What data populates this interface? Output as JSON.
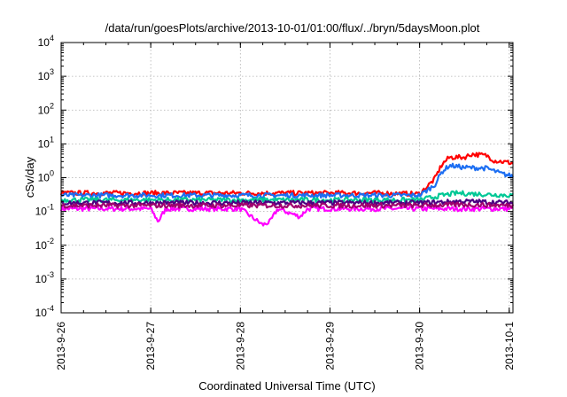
{
  "chart_data": {
    "type": "line",
    "title": "/data/run/goesPlots/archive/2013-10-01/01:00/flux/../bryn/5daysMoon.plot",
    "xlabel": "Coordinated Universal Time (UTC)",
    "ylabel": "cSv/day",
    "yscale": "log",
    "ylim": [
      0.0001,
      10000
    ],
    "xlim": [
      "2013-09-26",
      "2013-10-01 01:00"
    ],
    "grid": true,
    "x_ticks": [
      "2013-9-26",
      "2013-9-27",
      "2013-9-28",
      "2013-9-29",
      "2013-9-30",
      "2013-10-1"
    ],
    "y_ticks": [
      {
        "base": "10",
        "exp": "-4",
        "value": 0.0001
      },
      {
        "base": "10",
        "exp": "-3",
        "value": 0.001
      },
      {
        "base": "10",
        "exp": "-2",
        "value": 0.01
      },
      {
        "base": "10",
        "exp": "-1",
        "value": 0.1
      },
      {
        "base": "10",
        "exp": "0",
        "value": 1
      },
      {
        "base": "10",
        "exp": "1",
        "value": 10
      },
      {
        "base": "10",
        "exp": "2",
        "value": 100
      },
      {
        "base": "10",
        "exp": "3",
        "value": 1000
      },
      {
        "base": "10",
        "exp": "4",
        "value": 10000
      }
    ],
    "series": [
      {
        "color": "#ff00ff",
        "points": [
          [
            "2013-09-26 00:00",
            0.12
          ],
          [
            "2013-09-26 12:00",
            0.12
          ],
          [
            "2013-09-27 00:00",
            0.12
          ],
          [
            "2013-09-27 02:00",
            0.05
          ],
          [
            "2013-09-27 04:00",
            0.12
          ],
          [
            "2013-09-28 00:00",
            0.12
          ],
          [
            "2013-09-28 06:00",
            0.04
          ],
          [
            "2013-09-28 08:00",
            0.05
          ],
          [
            "2013-09-28 10:00",
            0.12
          ],
          [
            "2013-09-28 16:00",
            0.07
          ],
          [
            "2013-09-28 18:00",
            0.12
          ],
          [
            "2013-09-29 00:00",
            0.12
          ],
          [
            "2013-09-30 00:00",
            0.12
          ],
          [
            "2013-09-30 12:00",
            0.12
          ],
          [
            "2013-10-01 01:00",
            0.12
          ]
        ]
      },
      {
        "color": "#ff0000",
        "points": [
          [
            "2013-09-26 00:00",
            0.35
          ],
          [
            "2013-09-26 12:00",
            0.35
          ],
          [
            "2013-09-27 00:00",
            0.35
          ],
          [
            "2013-09-27 12:00",
            0.35
          ],
          [
            "2013-09-28 00:00",
            0.35
          ],
          [
            "2013-09-28 12:00",
            0.35
          ],
          [
            "2013-09-29 00:00",
            0.35
          ],
          [
            "2013-09-29 12:00",
            0.35
          ],
          [
            "2013-09-30 00:00",
            0.33
          ],
          [
            "2013-09-30 04:00",
            0.9
          ],
          [
            "2013-09-30 06:00",
            2.5
          ],
          [
            "2013-09-30 08:00",
            4.0
          ],
          [
            "2013-09-30 12:00",
            4.0
          ],
          [
            "2013-09-30 14:00",
            5.0
          ],
          [
            "2013-09-30 18:00",
            4.5
          ],
          [
            "2013-09-30 20:00",
            3.2
          ],
          [
            "2013-10-01 01:00",
            2.7
          ]
        ]
      },
      {
        "color": "#1c6ef2",
        "points": [
          [
            "2013-09-26 00:00",
            0.3
          ],
          [
            "2013-09-26 12:00",
            0.3
          ],
          [
            "2013-09-27 00:00",
            0.3
          ],
          [
            "2013-09-27 12:00",
            0.3
          ],
          [
            "2013-09-28 00:00",
            0.3
          ],
          [
            "2013-09-28 12:00",
            0.3
          ],
          [
            "2013-09-29 00:00",
            0.3
          ],
          [
            "2013-09-29 12:00",
            0.3
          ],
          [
            "2013-09-30 00:00",
            0.3
          ],
          [
            "2013-09-30 04:00",
            0.6
          ],
          [
            "2013-09-30 06:00",
            1.5
          ],
          [
            "2013-09-30 08:00",
            2.3
          ],
          [
            "2013-09-30 12:00",
            2.0
          ],
          [
            "2013-09-30 18:00",
            1.9
          ],
          [
            "2013-09-30 22:00",
            1.3
          ],
          [
            "2013-10-01 01:00",
            1.1
          ]
        ]
      },
      {
        "color": "#00c896",
        "points": [
          [
            "2013-09-26 00:00",
            0.22
          ],
          [
            "2013-09-27 00:00",
            0.22
          ],
          [
            "2013-09-28 00:00",
            0.22
          ],
          [
            "2013-09-29 00:00",
            0.22
          ],
          [
            "2013-09-30 00:00",
            0.22
          ],
          [
            "2013-09-30 06:00",
            0.3
          ],
          [
            "2013-09-30 10:00",
            0.35
          ],
          [
            "2013-09-30 18:00",
            0.32
          ],
          [
            "2013-10-01 01:00",
            0.3
          ]
        ]
      },
      {
        "color": "#4b0082",
        "points": [
          [
            "2013-09-26 00:00",
            0.18
          ],
          [
            "2013-09-27 00:00",
            0.18
          ],
          [
            "2013-09-28 00:00",
            0.18
          ],
          [
            "2013-09-29 00:00",
            0.18
          ],
          [
            "2013-09-30 00:00",
            0.18
          ],
          [
            "2013-09-30 12:00",
            0.2
          ],
          [
            "2013-10-01 01:00",
            0.18
          ]
        ]
      },
      {
        "color": "#a0006e",
        "points": [
          [
            "2013-09-26 00:00",
            0.15
          ],
          [
            "2013-09-27 00:00",
            0.15
          ],
          [
            "2013-09-28 00:00",
            0.15
          ],
          [
            "2013-09-29 00:00",
            0.15
          ],
          [
            "2013-09-30 00:00",
            0.15
          ],
          [
            "2013-09-30 12:00",
            0.16
          ],
          [
            "2013-10-01 01:00",
            0.15
          ]
        ]
      }
    ]
  }
}
